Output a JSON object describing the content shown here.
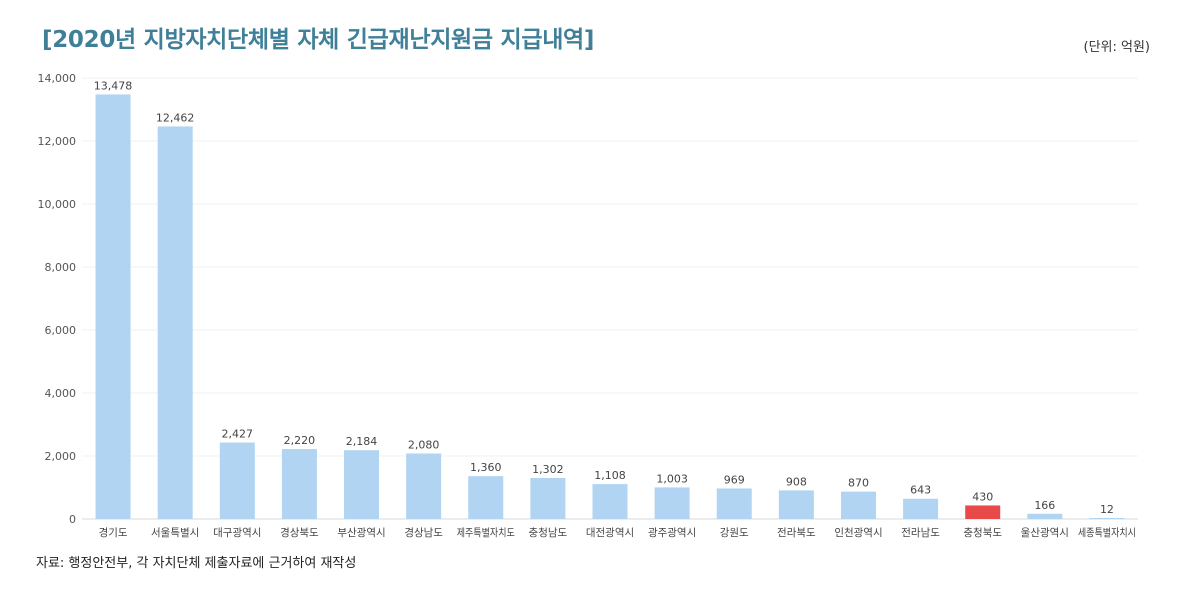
{
  "header": {
    "title": "[2020년 지방자치단체별 자체 긴급재난지원금 지급내역]",
    "unit": "(단위: 억원)"
  },
  "footer": {
    "source": "자료: 행정안전부, 각 자치단체 제출자료에 근거하여 재작성"
  },
  "chart_data": {
    "type": "bar",
    "categories": [
      "경기도",
      "서울특별시",
      "대구광역시",
      "경상북도",
      "부산광역시",
      "경상남도",
      "제주특별자치도",
      "충청남도",
      "대전광역시",
      "광주광역시",
      "강원도",
      "전라북도",
      "인천광역시",
      "전라남도",
      "충청북도",
      "울산광역시",
      "세종특별자치시"
    ],
    "values": [
      13478,
      12462,
      2427,
      2220,
      2184,
      2080,
      1360,
      1302,
      1108,
      1003,
      969,
      908,
      870,
      643,
      430,
      166,
      12
    ],
    "value_labels": [
      "13,478",
      "12,462",
      "2,427",
      "2,220",
      "2,184",
      "2,080",
      "1,360",
      "1,302",
      "1,108",
      "1,003",
      "969",
      "908",
      "870",
      "643",
      "430",
      "166",
      "12"
    ],
    "yticks": [
      0,
      2000,
      4000,
      6000,
      8000,
      10000,
      12000,
      14000
    ],
    "ytick_labels": [
      "0",
      "2,000",
      "4,000",
      "6,000",
      "8,000",
      "10,000",
      "12,000",
      "14,000"
    ],
    "ylim": [
      0,
      14000
    ],
    "grid": true,
    "colors": {
      "bar": "#b0d4f2",
      "highlight": "#e84a4a"
    },
    "highlight_index": 14
  }
}
